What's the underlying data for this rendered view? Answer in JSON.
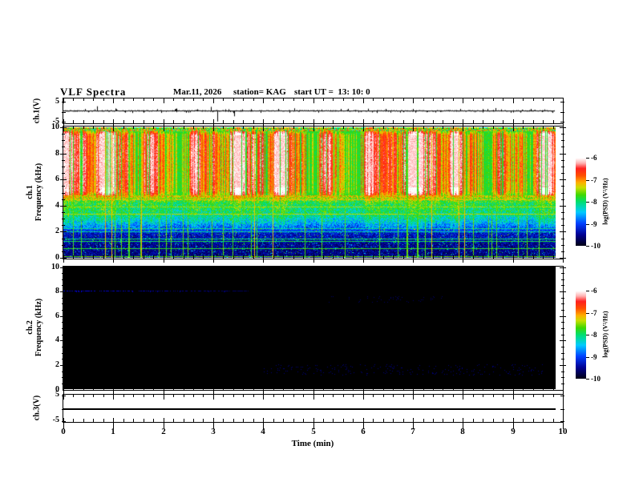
{
  "header": {
    "title": "VLF Spectra",
    "date": "Mar.11, 2026",
    "station": "station= KAG",
    "start_ut": "start UT =  13: 10: 0"
  },
  "left_labels": {
    "ch1": "ch.1(V)",
    "spec1_line1": "ch.1",
    "spec1_line2": "Frequency (kHz)",
    "spec2_line1": "ch.2",
    "spec2_line2": "Frequency (kHz)",
    "ch3": "ch.3(V)"
  },
  "x_axis": {
    "label": "Time (min)",
    "tick_labels": [
      "0",
      "1",
      "2",
      "3",
      "4",
      "5",
      "6",
      "7",
      "8",
      "9",
      "10"
    ],
    "range": [
      0,
      10
    ],
    "minor_step_min": 0.2
  },
  "colorbar": {
    "label": "log(PSD) (V²/Hz)",
    "tick_labels": [
      "-6",
      "-7",
      "-8",
      "-9",
      "-10"
    ],
    "range_log_psd": [
      -6,
      -10
    ]
  },
  "palette": [
    [
      0.0,
      "#000018"
    ],
    [
      0.12,
      "#000090"
    ],
    [
      0.25,
      "#0040ff"
    ],
    [
      0.38,
      "#00ccff"
    ],
    [
      0.5,
      "#00e070"
    ],
    [
      0.58,
      "#40d800"
    ],
    [
      0.66,
      "#c8e000"
    ],
    [
      0.72,
      "#ffb000"
    ],
    [
      0.8,
      "#ff5000"
    ],
    [
      0.88,
      "#ff2020"
    ],
    [
      0.94,
      "#ffb0b0"
    ],
    [
      1.0,
      "#ffffff"
    ]
  ],
  "chart_data": [
    {
      "name": "ch1_voltage",
      "type": "line",
      "unit": "V",
      "ylim": [
        -6.6,
        6.6
      ],
      "yticks": [
        5,
        -5
      ],
      "ytick_labels": [
        "5",
        "-5"
      ],
      "baseline_v": 0,
      "noise_v": 0.4,
      "data_end_min": 9.84,
      "spikes": [
        {
          "t_min": 0.68,
          "v": 2.3
        },
        {
          "t_min": 1.05,
          "v": 1.2
        },
        {
          "t_min": 1.6,
          "v": -0.9
        },
        {
          "t_min": 2.25,
          "v": 1.0
        },
        {
          "t_min": 2.95,
          "v": 2.0
        },
        {
          "t_min": 3.08,
          "v": -5.3
        },
        {
          "t_min": 3.42,
          "v": -2.7
        },
        {
          "t_min": 3.75,
          "v": 0.9
        },
        {
          "t_min": 4.3,
          "v": 1.0
        },
        {
          "t_min": 4.62,
          "v": 1.3
        },
        {
          "t_min": 5.1,
          "v": -0.9
        },
        {
          "t_min": 5.55,
          "v": 1.0
        },
        {
          "t_min": 6.1,
          "v": 1.1
        },
        {
          "t_min": 6.55,
          "v": -0.9
        },
        {
          "t_min": 7.0,
          "v": 1.0
        },
        {
          "t_min": 7.45,
          "v": -0.8
        },
        {
          "t_min": 7.95,
          "v": 1.0
        },
        {
          "t_min": 8.4,
          "v": 0.9
        },
        {
          "t_min": 8.65,
          "v": 1.4
        },
        {
          "t_min": 9.0,
          "v": -0.8
        },
        {
          "t_min": 9.35,
          "v": 1.0
        }
      ]
    },
    {
      "name": "ch1_spectrogram",
      "type": "heatmap",
      "unit": "kHz",
      "ylim": [
        0,
        10
      ],
      "yticks": [
        10,
        8,
        6,
        4,
        2,
        0
      ],
      "psd_range_log": [
        -10,
        -6
      ],
      "data_end_min": 9.84,
      "profile_points": [
        [
          0,
          0.1
        ],
        [
          1.0,
          0.12
        ],
        [
          1.9,
          0.18
        ],
        [
          2.3,
          0.3
        ],
        [
          2.8,
          0.42
        ],
        [
          3.3,
          0.5
        ],
        [
          4.2,
          0.55
        ],
        [
          4.7,
          0.7
        ],
        [
          5.1,
          0.82
        ],
        [
          7.0,
          0.85
        ],
        [
          9.4,
          0.83
        ],
        [
          9.75,
          0.66
        ],
        [
          10,
          0.62
        ]
      ],
      "h_lines": [
        {
          "f_khz": 4.5,
          "level": 0.7
        },
        {
          "f_khz": 3.9,
          "level": 0.64
        },
        {
          "f_khz": 3.35,
          "level": 0.66
        },
        {
          "f_khz": 2.25,
          "level": 0.48
        },
        {
          "f_khz": 2.05,
          "level": 0.46
        },
        {
          "f_khz": 1.5,
          "level": 0.5
        },
        {
          "f_khz": 1.28,
          "level": 0.52
        },
        {
          "f_khz": 0.75,
          "level": 0.55
        },
        {
          "f_khz": 0.12,
          "level": 0.6
        }
      ],
      "v_lines": {
        "count": 44,
        "green_level": 0.58,
        "yellow_level": 0.7,
        "yellow_fraction": 0.15
      },
      "streak_band_khz": [
        4.8,
        9.7
      ],
      "white_blob_band_khz": [
        5.4,
        9.4
      ]
    },
    {
      "name": "ch2_spectrogram",
      "type": "heatmap",
      "unit": "kHz",
      "ylim": [
        0,
        10
      ],
      "yticks": [
        10,
        8,
        6,
        4,
        2,
        0
      ],
      "psd_range_log": [
        -10,
        -6
      ],
      "data_end_min": 9.84,
      "background_level": 0.0,
      "features": [
        {
          "kind": "dashed_h_line",
          "f_khz": 8.05,
          "t_min": [
            0,
            3.7
          ],
          "color_peak": "#0000e0"
        },
        {
          "kind": "specks",
          "f_khz": [
            1.2,
            2.0
          ],
          "t_min": [
            4.0,
            9.6
          ],
          "color": "#000078",
          "density": 0.05
        },
        {
          "kind": "specks",
          "f_khz": [
            7.1,
            7.6
          ],
          "t_min": [
            5.3,
            7.6
          ],
          "color": "#000060",
          "density": 0.04
        }
      ]
    },
    {
      "name": "ch3_voltage",
      "type": "line",
      "unit": "V",
      "ylim": [
        -5.6,
        5.6
      ],
      "yticks": [
        5,
        -5
      ],
      "ytick_labels": [
        "5",
        "-5"
      ],
      "baseline_v": 0,
      "noise_v": 0,
      "data_end_min": 9.8,
      "spikes": []
    }
  ]
}
